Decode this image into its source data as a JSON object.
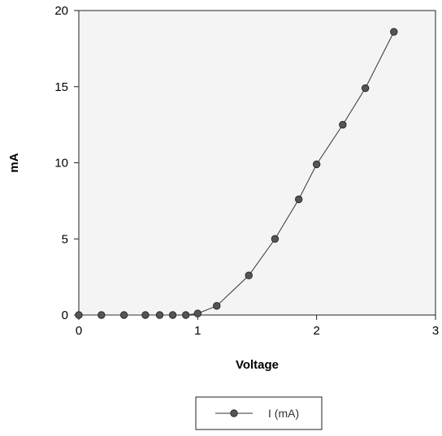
{
  "chart_data": {
    "type": "line",
    "xlabel": "Voltage",
    "ylabel": "mA",
    "xlim": [
      0,
      3
    ],
    "ylim": [
      0,
      20
    ],
    "x_ticks": [
      0,
      1,
      2,
      3
    ],
    "y_ticks": [
      0,
      5,
      10,
      15,
      20
    ],
    "grid": false,
    "legend_position": "bottom",
    "colors": {
      "plot_background": "#f4f4f4",
      "line": "#333333",
      "marker": "#555555"
    },
    "series": [
      {
        "name": "I (mA)",
        "x": [
          0,
          0.19,
          0.38,
          0.56,
          0.68,
          0.79,
          0.9,
          1.0,
          1.16,
          1.43,
          1.65,
          1.85,
          2.0,
          2.22,
          2.41,
          2.65
        ],
        "y": [
          0,
          0,
          0,
          0,
          0,
          0,
          0,
          0.1,
          0.6,
          2.6,
          5.0,
          7.6,
          9.9,
          12.5,
          14.9,
          18.6
        ]
      }
    ]
  }
}
